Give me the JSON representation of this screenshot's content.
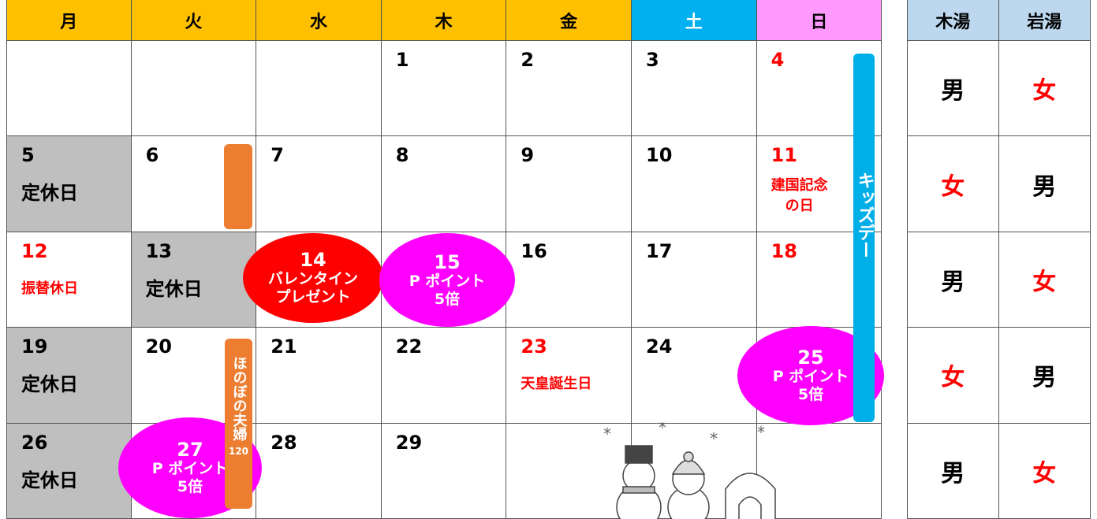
{
  "calendar": {
    "header": [
      "月",
      "火",
      "水",
      "木",
      "金",
      "土",
      "日"
    ],
    "weeks": [
      [
        null,
        null,
        null,
        {
          "day": "1"
        },
        {
          "day": "2"
        },
        {
          "day": "3"
        },
        {
          "day": "4"
        }
      ],
      [
        {
          "day": "5",
          "lines": [
            "定休日"
          ]
        },
        {
          "day": "6"
        },
        {
          "day": "7"
        },
        {
          "day": "8"
        },
        {
          "day": "9"
        },
        {
          "day": "10"
        },
        {
          "day": "11",
          "lines": [
            "建国記念",
            "の日"
          ]
        }
      ],
      [
        {
          "day": "12",
          "lines": [
            "振替休日"
          ]
        },
        {
          "day": "13",
          "lines": [
            "定休日"
          ]
        },
        {
          "day": "14",
          "lines": [
            "バレンタイン",
            "プレゼント"
          ]
        },
        {
          "day": "15",
          "lines": [
            "P ポイント",
            "5倍"
          ]
        },
        {
          "day": "16"
        },
        {
          "day": "17"
        },
        {
          "day": "18"
        }
      ],
      [
        {
          "day": "19",
          "lines": [
            "定休日"
          ]
        },
        {
          "day": "20"
        },
        {
          "day": "21"
        },
        {
          "day": "22"
        },
        {
          "day": "23",
          "lines": [
            "天皇誕生日"
          ]
        },
        {
          "day": "24"
        },
        {
          "day": "25",
          "lines": [
            "P ポイント",
            "5倍"
          ]
        }
      ],
      [
        {
          "day": "26",
          "lines": [
            "定休日"
          ]
        },
        {
          "day": "27",
          "lines": [
            "P ポイント",
            "5倍"
          ]
        },
        {
          "day": "28"
        },
        {
          "day": "29"
        },
        null,
        null,
        null
      ]
    ],
    "kids_day": "キッズデー",
    "couple_day": "ほのぼの夫婦",
    "couple_day_number": "120"
  },
  "baths": {
    "header": [
      "木湯",
      "岩湯"
    ],
    "rows": [
      [
        "男",
        "女"
      ],
      [
        "女",
        "男"
      ],
      [
        "男",
        "女"
      ],
      [
        "女",
        "男"
      ],
      [
        "男",
        "女"
      ]
    ]
  }
}
